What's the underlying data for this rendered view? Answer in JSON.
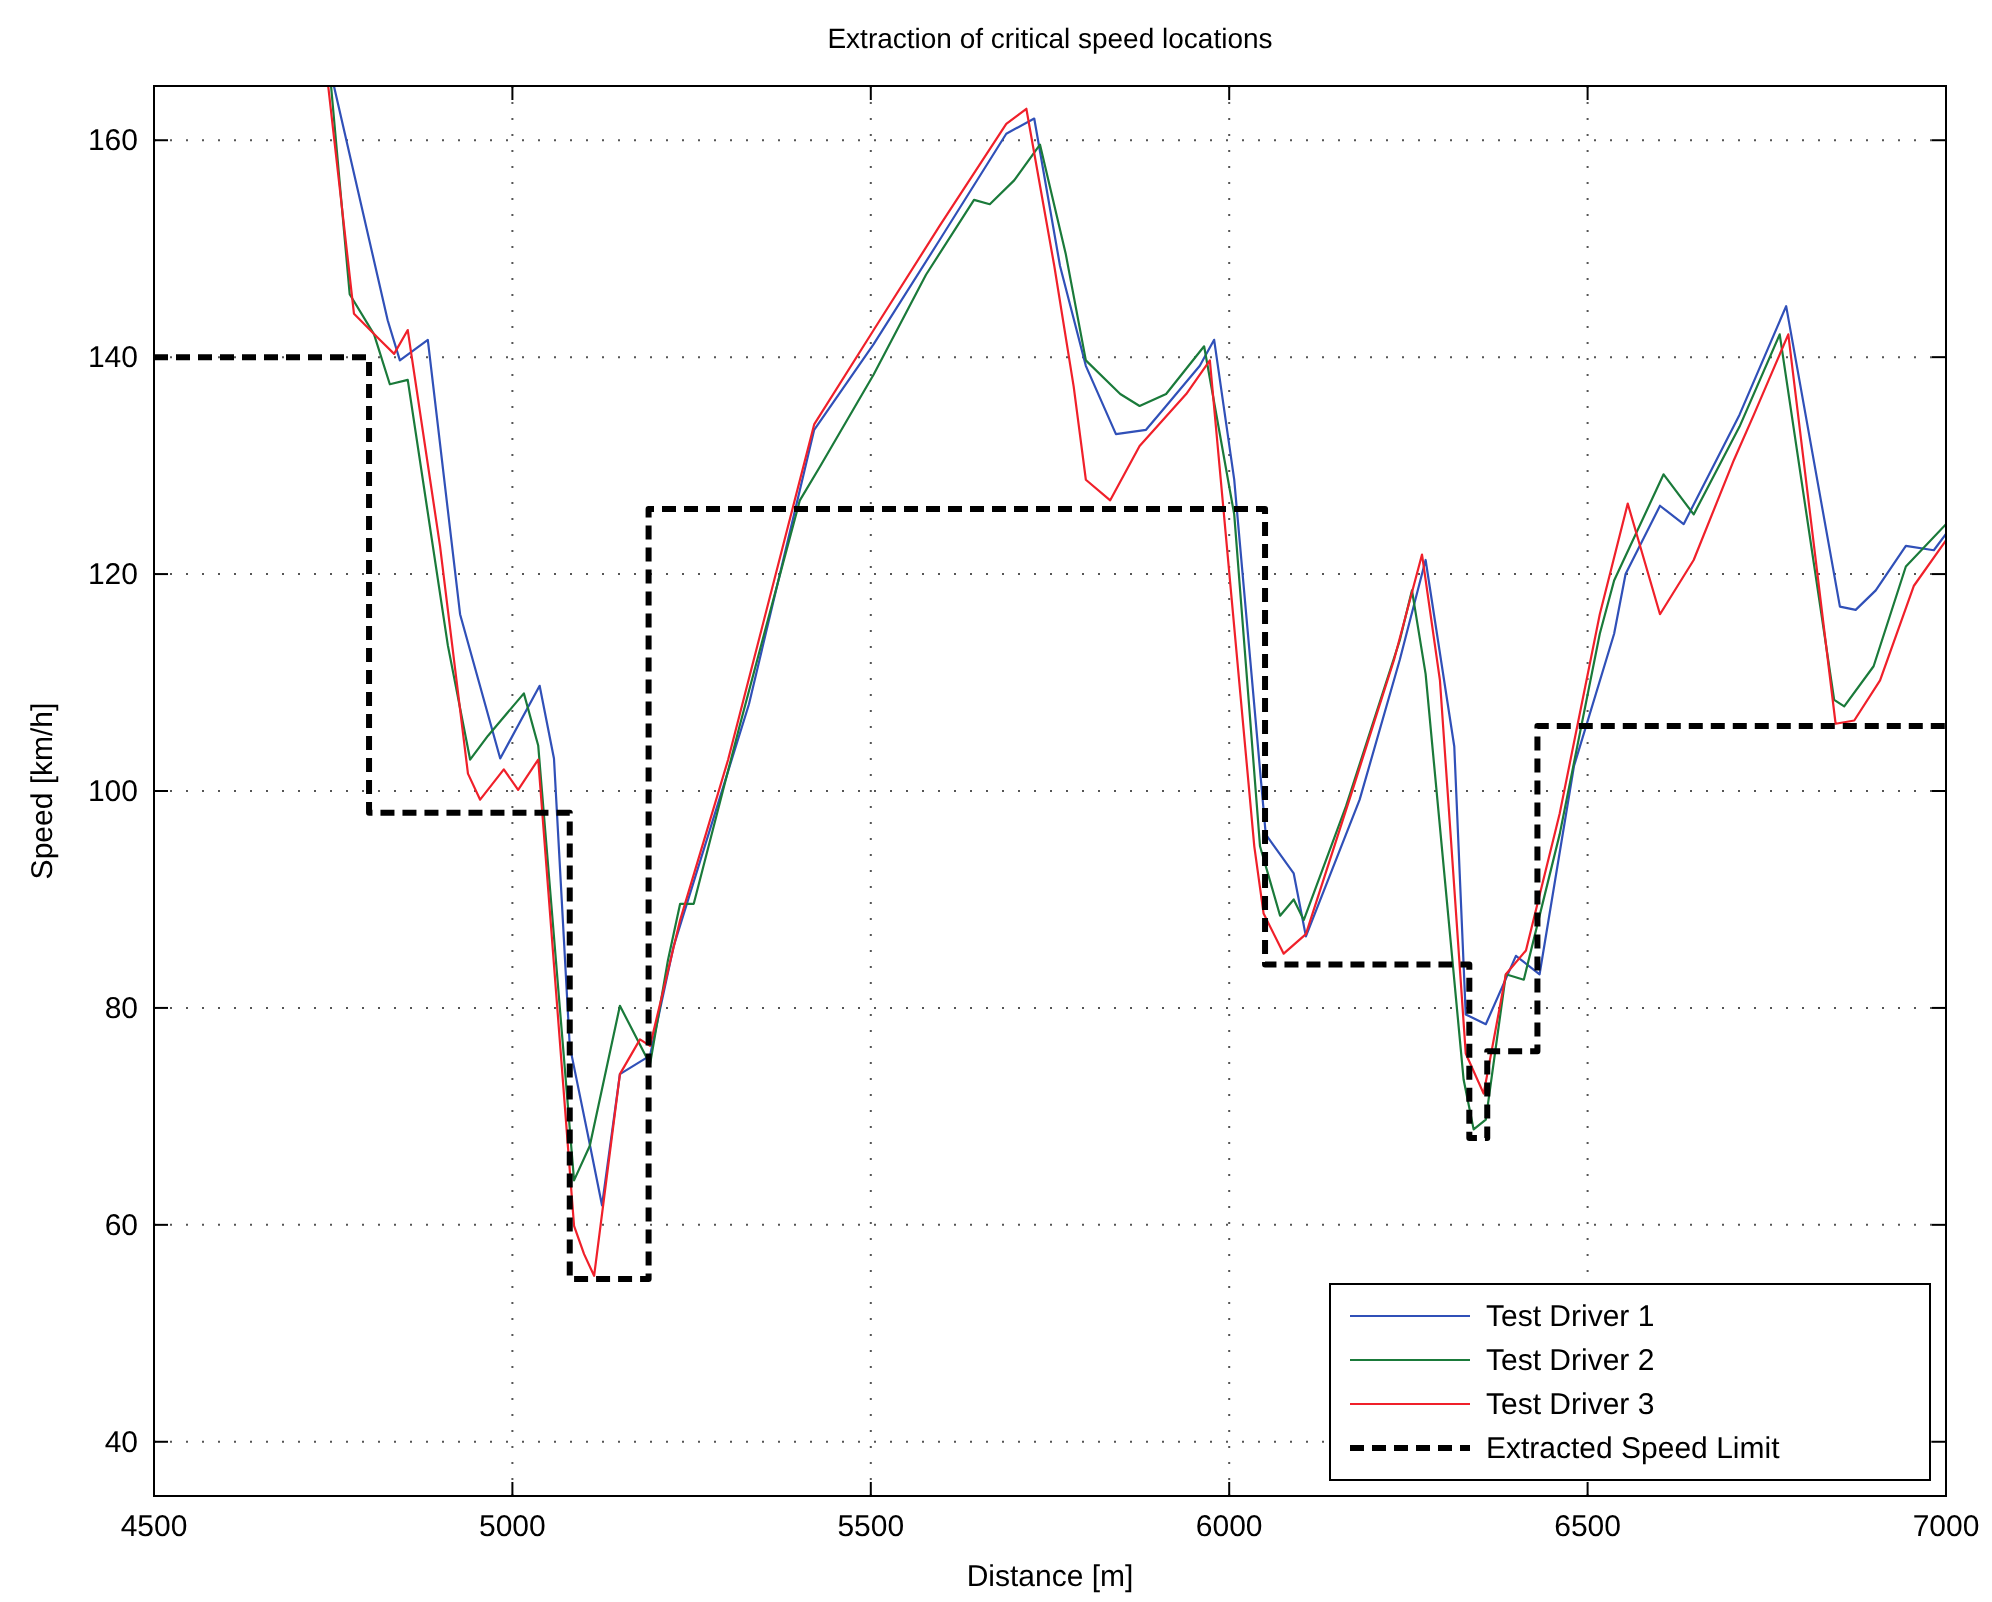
{
  "chart_data": {
    "type": "line",
    "title": "Extraction of critical speed locations",
    "xlabel": "Distance [m]",
    "ylabel": "Speed [km/h]",
    "xlim": [
      4500,
      7000
    ],
    "xticks": [
      4500,
      5000,
      5500,
      6000,
      6500,
      7000
    ],
    "ylim": [
      35,
      165
    ],
    "yticks": [
      40,
      60,
      80,
      100,
      120,
      140,
      160
    ],
    "grid": true,
    "legend": "bottom right",
    "line_style": "solid",
    "series": [
      {
        "name": "Test Driver 1",
        "color": "#3050b8",
        "x": [
          4751,
          4826,
          4843,
          4882,
          4927,
          4983,
          5038,
          5058,
          5080,
          5105,
          5125,
          5150,
          5192,
          5225,
          5330,
          5421,
          5504,
          5596,
          5689,
          5728,
          5764,
          5800,
          5842,
          5884,
          5912,
          5959,
          5979,
          6007,
          6051,
          6090,
          6107,
          6182,
          6238,
          6274,
          6314,
          6330,
          6358,
          6400,
          6433,
          6481,
          6537,
          6553,
          6601,
          6634,
          6712,
          6777,
          6852,
          6874,
          6902,
          6944,
          6983,
          7000
        ],
        "values": [
          165,
          143.4,
          139.7,
          141.6,
          116.3,
          103,
          109.7,
          103,
          76.5,
          68.4,
          61.8,
          73.9,
          75.6,
          85.7,
          108,
          133.3,
          141.2,
          150.8,
          160.6,
          162,
          148.4,
          139.2,
          132.9,
          133.3,
          135.5,
          139.2,
          141.6,
          128.7,
          96,
          92.4,
          86.6,
          99.2,
          112.1,
          121.3,
          104.1,
          79.4,
          78.5,
          84.8,
          83.1,
          102.3,
          114.5,
          120,
          126.3,
          124.6,
          134.7,
          144.7,
          117,
          116.7,
          118.5,
          122.6,
          122.2,
          123.7
        ]
      },
      {
        "name": "Test Driver 2",
        "color": "#1a7a3a",
        "x": [
          4747,
          4773,
          4807,
          4829,
          4854,
          4910,
          4941,
          4966,
          5016,
          5036,
          5086,
          5108,
          5150,
          5192,
          5217,
          5234,
          5253,
          5317,
          5401,
          5429,
          5504,
          5577,
          5644,
          5666,
          5700,
          5736,
          5772,
          5800,
          5848,
          5875,
          5912,
          5965,
          6007,
          6043,
          6071,
          6090,
          6104,
          6163,
          6238,
          6255,
          6274,
          6327,
          6341,
          6358,
          6386,
          6411,
          6461,
          6517,
          6537,
          6606,
          6648,
          6712,
          6768,
          6844,
          6858,
          6899,
          6944,
          7000
        ],
        "values": [
          165,
          145.8,
          142.1,
          137.5,
          137.9,
          113.4,
          102.9,
          105.1,
          109,
          104.2,
          64.1,
          67.3,
          80.2,
          74.8,
          84.4,
          89.6,
          89.6,
          106,
          126.8,
          129.9,
          138.4,
          147.6,
          154.5,
          154.1,
          156.3,
          159.6,
          149.5,
          139.7,
          136.6,
          135.5,
          136.6,
          141,
          125.5,
          94.9,
          88.5,
          90,
          88.1,
          98.6,
          113.9,
          118.5,
          110.8,
          73.4,
          68.8,
          69.7,
          83.1,
          82.6,
          96,
          114.5,
          119.4,
          129.2,
          125.5,
          133.6,
          142.1,
          108.4,
          107.8,
          111.5,
          120.7,
          124.6
        ]
      },
      {
        "name": "Test Driver 3",
        "color": "#f0202a",
        "x": [
          4743,
          4779,
          4815,
          4835,
          4854,
          4899,
          4938,
          4955,
          4988,
          5008,
          5036,
          5086,
          5100,
          5114,
          5150,
          5178,
          5192,
          5234,
          5301,
          5421,
          5504,
          5596,
          5689,
          5717,
          5756,
          5783,
          5800,
          5834,
          5875,
          5940,
          5973,
          6035,
          6048,
          6076,
          6107,
          6174,
          6230,
          6269,
          6294,
          6330,
          6355,
          6386,
          6414,
          6461,
          6517,
          6556,
          6601,
          6648,
          6704,
          6732,
          6780,
          6846,
          6872,
          6908,
          6955,
          7000
        ],
        "values": [
          165,
          144,
          141.6,
          140.3,
          142.5,
          122.6,
          101.6,
          99.2,
          102,
          100.1,
          102.9,
          59.9,
          57.3,
          55.3,
          73.9,
          77.1,
          76.5,
          88.1,
          102.9,
          133.8,
          142.5,
          152.1,
          161.5,
          162.9,
          148.4,
          137.3,
          128.7,
          126.8,
          131.8,
          136.6,
          139.7,
          94.9,
          88.7,
          85,
          86.8,
          100.5,
          112.1,
          121.8,
          110.2,
          75.8,
          72.1,
          83.1,
          85.3,
          97.9,
          116.3,
          126.5,
          116.3,
          121.3,
          130.5,
          134.7,
          142.1,
          106.2,
          106.5,
          110.2,
          118.9,
          123.1
        ]
      },
      {
        "name": "Extracted Speed Limit",
        "type": "step",
        "color": "#000000",
        "line_style": "dashed",
        "x": [
          4500,
          4800,
          5080,
          5190,
          6050,
          6335,
          6360,
          6430,
          7000
        ],
        "values": [
          140,
          98,
          55,
          126,
          84,
          68,
          76,
          106,
          106
        ]
      }
    ]
  }
}
